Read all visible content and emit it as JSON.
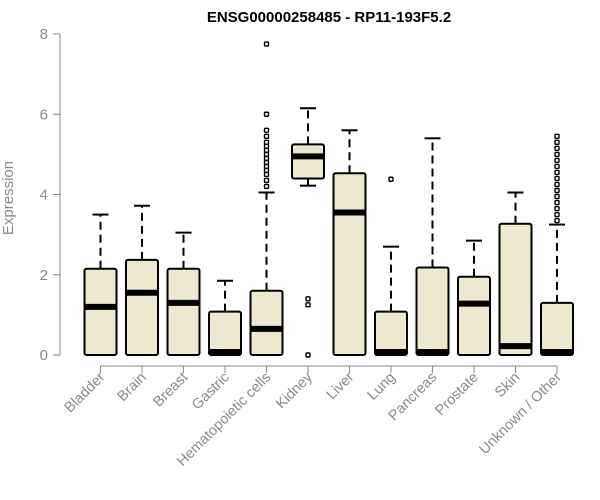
{
  "chart_data": {
    "type": "boxplot",
    "title": "ENSG00000258485 - RP11-193F5.2",
    "xlabel": "",
    "ylabel": "Expression",
    "ylim": [
      0,
      8
    ],
    "yticks": [
      0,
      2,
      4,
      6,
      8
    ],
    "categories": [
      "Bladder",
      "Brain",
      "Breast",
      "Gastric",
      "Hematopoietic cells",
      "Kidney",
      "Liver",
      "Lung",
      "Pancreas",
      "Prostate",
      "Skin",
      "Unknown / Other"
    ],
    "boxes": [
      {
        "category": "Bladder",
        "whisker_low": 0,
        "q1": 0,
        "median": 1.2,
        "q3": 2.15,
        "whisker_high": 3.5,
        "outliers": []
      },
      {
        "category": "Brain",
        "whisker_low": 0,
        "q1": 0,
        "median": 1.55,
        "q3": 2.37,
        "whisker_high": 3.72,
        "outliers": []
      },
      {
        "category": "Breast",
        "whisker_low": 0,
        "q1": 0,
        "median": 1.3,
        "q3": 2.15,
        "whisker_high": 3.05,
        "outliers": []
      },
      {
        "category": "Gastric",
        "whisker_low": 0,
        "q1": 0,
        "median": 0.02,
        "q3": 1.08,
        "whisker_high": 1.85,
        "outliers": []
      },
      {
        "category": "Hematopoietic cells",
        "whisker_low": 0,
        "q1": 0,
        "median": 0.65,
        "q3": 1.6,
        "whisker_high": 4.05,
        "outliers": [
          4.2,
          4.35,
          4.5,
          4.6,
          4.7,
          4.8,
          4.9,
          5.0,
          5.1,
          5.2,
          5.3,
          5.45,
          5.6,
          6.0,
          7.75
        ]
      },
      {
        "category": "Kidney",
        "whisker_low": 4.22,
        "q1": 4.4,
        "median": 4.95,
        "q3": 5.25,
        "whisker_high": 6.15,
        "outliers": [
          0,
          1.25,
          1.4
        ]
      },
      {
        "category": "Liver",
        "whisker_low": 0,
        "q1": 0,
        "median": 3.55,
        "q3": 4.53,
        "whisker_high": 5.6,
        "outliers": []
      },
      {
        "category": "Lung",
        "whisker_low": 0,
        "q1": 0,
        "median": 0.02,
        "q3": 1.08,
        "whisker_high": 2.7,
        "outliers": [
          4.38
        ]
      },
      {
        "category": "Pancreas",
        "whisker_low": 0,
        "q1": 0,
        "median": 0.02,
        "q3": 2.18,
        "whisker_high": 5.4,
        "outliers": []
      },
      {
        "category": "Prostate",
        "whisker_low": 0,
        "q1": 0,
        "median": 1.28,
        "q3": 1.95,
        "whisker_high": 2.85,
        "outliers": []
      },
      {
        "category": "Skin",
        "whisker_low": 0,
        "q1": 0,
        "median": 0.22,
        "q3": 3.27,
        "whisker_high": 4.05,
        "outliers": []
      },
      {
        "category": "Unknown / Other",
        "whisker_low": 0,
        "q1": 0,
        "median": 0.02,
        "q3": 1.3,
        "whisker_high": 3.25,
        "outliers": [
          3.35,
          3.5,
          3.65,
          3.8,
          3.95,
          4.1,
          4.25,
          4.4,
          4.55,
          4.7,
          4.85,
          5.0,
          5.15,
          5.3,
          5.45
        ]
      }
    ],
    "colors": {
      "box_fill": "#efe8d0",
      "line": "#000000",
      "axis": "#8a8a8a"
    }
  }
}
